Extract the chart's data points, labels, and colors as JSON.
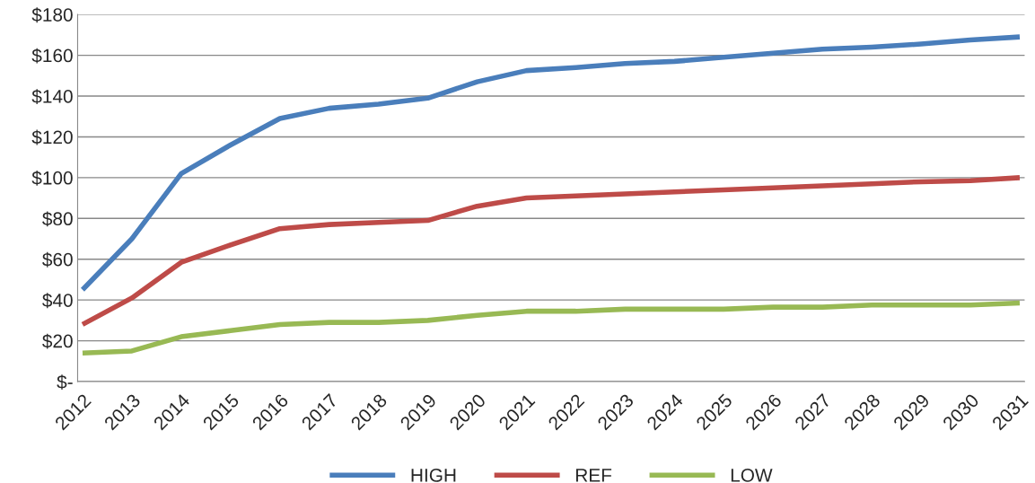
{
  "chart_data": {
    "type": "line",
    "categories": [
      "2012",
      "2013",
      "2014",
      "2015",
      "2016",
      "2017",
      "2018",
      "2019",
      "2020",
      "2021",
      "2022",
      "2023",
      "2024",
      "2025",
      "2026",
      "2027",
      "2028",
      "2029",
      "2030",
      "2031"
    ],
    "series": [
      {
        "name": "HIGH",
        "color": "#4a7ebb",
        "values": [
          45,
          70,
          102,
          116,
          129,
          134,
          136,
          139,
          147,
          152.5,
          154,
          156,
          157,
          159,
          161,
          163,
          164,
          165.5,
          167.5,
          169
        ]
      },
      {
        "name": "REF",
        "color": "#be4b48",
        "values": [
          28,
          41,
          58.5,
          67,
          75,
          77,
          78,
          79,
          86,
          90,
          91,
          92,
          93,
          94,
          95,
          96,
          97,
          98,
          98.5,
          100
        ]
      },
      {
        "name": "LOW",
        "color": "#98b954",
        "values": [
          14,
          15,
          22,
          25,
          28,
          29,
          29,
          30,
          32.5,
          34.5,
          34.5,
          35.5,
          35.5,
          35.5,
          36.5,
          36.5,
          37.5,
          37.5,
          37.5,
          38.5
        ]
      }
    ],
    "ylim": [
      0,
      180
    ],
    "yticks": [
      {
        "value": 0,
        "label": "$-"
      },
      {
        "value": 20,
        "label": "$20"
      },
      {
        "value": 40,
        "label": "$40"
      },
      {
        "value": 60,
        "label": "$60"
      },
      {
        "value": 80,
        "label": "$80"
      },
      {
        "value": 100,
        "label": "$100"
      },
      {
        "value": 120,
        "label": "$120"
      },
      {
        "value": 140,
        "label": "$140"
      },
      {
        "value": 160,
        "label": "$160"
      },
      {
        "value": 180,
        "label": "$180"
      }
    ],
    "grid": "y",
    "legend": "bottom",
    "marker": "none",
    "line_style": "solid"
  }
}
